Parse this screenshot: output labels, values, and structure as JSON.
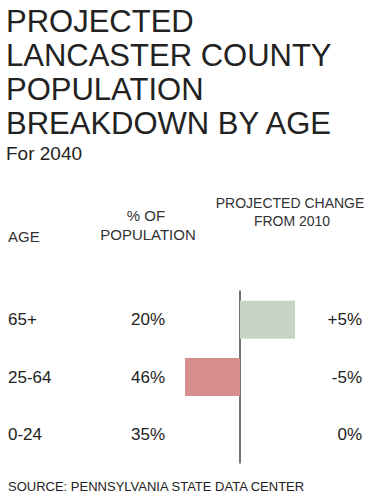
{
  "chart_data": {
    "type": "bar",
    "orientation": "horizontal",
    "title": "PROJECTED LANCASTER COUNTY POPULATION BREAKDOWN BY AGE",
    "subtitle": "For 2040",
    "category_header": "AGE",
    "share_header": "% OF POPULATION",
    "change_header": "PROJECTED CHANGE FROM 2010",
    "categories": [
      "65+",
      "25-64",
      "0-24"
    ],
    "share_values": [
      20,
      46,
      35
    ],
    "share_labels": [
      "20%",
      "46%",
      "35%"
    ],
    "values": [
      5,
      -5,
      0
    ],
    "value_labels": [
      "+5%",
      "-5%",
      "0%"
    ],
    "colors": [
      "#c8d5c4",
      "#d78f8e",
      "#999999"
    ],
    "xlim": [
      -5,
      5
    ],
    "tick_labels": "y",
    "grid": false,
    "data_labels": true,
    "source": "SOURCE: PENNSYLVANIA STATE DATA CENTER"
  }
}
